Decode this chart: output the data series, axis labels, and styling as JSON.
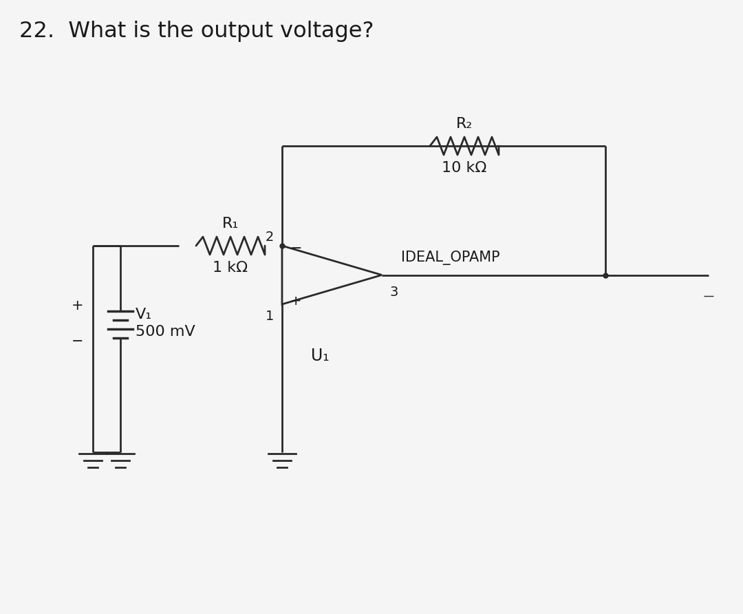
{
  "title": "22.  What is the output voltage?",
  "title_fontsize": 23,
  "bg_color": "#f5f5f5",
  "line_color": "#2a2a2a",
  "text_color": "#1a1a1a",
  "R1_label": "R₁",
  "R1_value": "1 kΩ",
  "R2_label": "R₂",
  "R2_value": "10 kΩ",
  "V1_label": "V₁",
  "V1_value": "500 mV",
  "opamp_label": "IDEAL_OPAMP",
  "U1_label": "U₁",
  "node2_label": "2",
  "node1_label": "1",
  "node3_label": "3",
  "plus_label": "+",
  "minus_label": "−"
}
